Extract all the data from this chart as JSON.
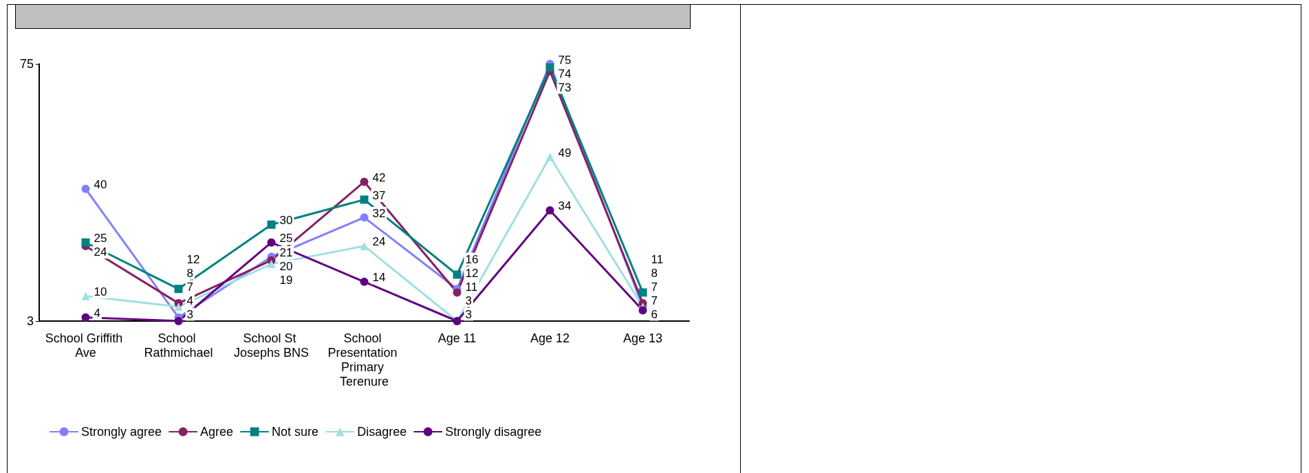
{
  "chart_data": {
    "type": "line",
    "categories": [
      "School Griffith Ave",
      "School Rathmichael",
      "School St Josephs BNS",
      "School Presentation Primary Terenure",
      "Age 11",
      "Age 12",
      "Age 13"
    ],
    "series": [
      {
        "name": "Strongly agree",
        "color": "#8080ff",
        "marker": "circle",
        "values": [
          40,
          4,
          21,
          32,
          12,
          75,
          7
        ]
      },
      {
        "name": "Agree",
        "color": "#862063",
        "marker": "circle",
        "values": [
          24,
          8,
          20,
          42,
          11,
          73,
          8
        ]
      },
      {
        "name": "Not sure",
        "color": "#008080",
        "marker": "square",
        "values": [
          25,
          12,
          30,
          37,
          16,
          74,
          11
        ]
      },
      {
        "name": "Disagree",
        "color": "#a0e0e0",
        "marker": "triangle",
        "values": [
          10,
          7,
          19,
          24,
          3,
          49,
          7
        ]
      },
      {
        "name": "Strongly disagree",
        "color": "#600080",
        "marker": "circle",
        "values": [
          4,
          3,
          25,
          14,
          3,
          34,
          6
        ]
      }
    ],
    "ylim": [
      3,
      75
    ],
    "yticks": [
      3,
      75
    ],
    "grid": false,
    "legend": "bottom",
    "data_labels": true,
    "line_style": "solid"
  }
}
